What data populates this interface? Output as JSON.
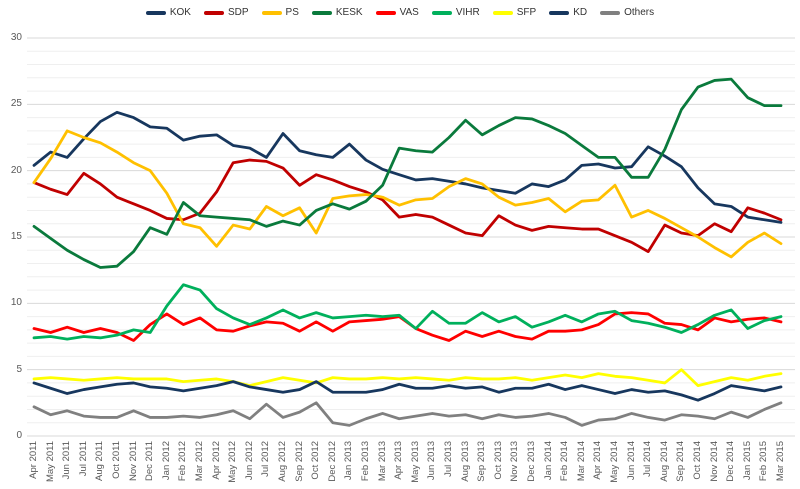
{
  "chart_data": {
    "type": "line",
    "title": "",
    "xlabel": "",
    "ylabel": "",
    "ylim": [
      0,
      30
    ],
    "ytick_interval": 5,
    "minor_grid_interval": 1,
    "grid": true,
    "legend_position": "top",
    "y_ticks": [
      "0",
      "5",
      "10",
      "15",
      "20",
      "25",
      "30"
    ],
    "categories": [
      "Apr 2011",
      "May 2011",
      "Jun 2011",
      "Jul 2011",
      "Aug 2011",
      "Oct 2011",
      "Nov 2011",
      "Dec 2011",
      "Jan 2012",
      "Feb 2012",
      "Mar 2012",
      "Apr 2012",
      "May 2012",
      "Jun 2012",
      "Jul 2012",
      "Aug 2012",
      "Sep 2012",
      "Oct 2012",
      "Dec 2012",
      "Jan 2013",
      "Feb 2013",
      "Mar 2013",
      "Apr 2013",
      "May 2013",
      "Jun 2013",
      "Jul 2013",
      "Aug 2013",
      "Sep 2013",
      "Oct 2013",
      "Nov 2013",
      "Dec 2013",
      "Jan 2014",
      "Feb 2014",
      "Mar 2014",
      "Apr 2014",
      "May 2014",
      "Jun 2014",
      "Jul 2014",
      "Aug 2014",
      "Sep 2014",
      "Oct 2014",
      "Nov 2014",
      "Dec 2014",
      "Jan 2015",
      "Feb 2015",
      "Mar 2015"
    ],
    "series": [
      {
        "name": "KOK",
        "color": "#17375E",
        "values": [
          20.4,
          21.4,
          21.0,
          22.4,
          23.7,
          24.4,
          24.0,
          23.3,
          23.2,
          22.3,
          22.6,
          22.7,
          21.9,
          21.7,
          21.0,
          22.8,
          21.5,
          21.2,
          21.0,
          22.0,
          20.8,
          20.1,
          19.7,
          19.3,
          19.4,
          19.2,
          19.0,
          18.7,
          18.5,
          18.3,
          19.0,
          18.8,
          19.3,
          20.4,
          20.5,
          20.2,
          20.3,
          21.8,
          21.1,
          20.3,
          18.7,
          17.5,
          17.3,
          16.5,
          16.3,
          16.1
        ]
      },
      {
        "name": "SDP",
        "color": "#C00000",
        "values": [
          19.1,
          18.6,
          18.2,
          19.8,
          19.0,
          18.0,
          17.5,
          17.0,
          16.4,
          16.3,
          16.8,
          18.4,
          20.6,
          20.8,
          20.7,
          20.2,
          18.9,
          19.7,
          19.3,
          18.8,
          18.4,
          17.8,
          16.5,
          16.7,
          16.5,
          15.9,
          15.3,
          15.1,
          16.6,
          15.9,
          15.5,
          15.8,
          15.7,
          15.6,
          15.6,
          15.1,
          14.6,
          13.9,
          15.9,
          15.3,
          15.1,
          16.0,
          15.4,
          17.2,
          16.8,
          16.3
        ]
      },
      {
        "name": "PS",
        "color": "#FFC000",
        "values": [
          19.1,
          20.9,
          23.0,
          22.5,
          22.1,
          21.4,
          20.6,
          20.0,
          18.3,
          16.0,
          15.7,
          14.3,
          15.9,
          15.6,
          17.3,
          16.6,
          17.2,
          15.3,
          17.9,
          18.1,
          18.2,
          18.0,
          17.4,
          17.8,
          17.9,
          18.8,
          19.4,
          19.0,
          18.0,
          17.4,
          17.6,
          17.9,
          16.9,
          17.7,
          17.8,
          18.9,
          16.5,
          17.0,
          16.4,
          15.7,
          15.0,
          14.2,
          13.5,
          14.6,
          15.3,
          14.5
        ]
      },
      {
        "name": "KESK",
        "color": "#0A7A3C",
        "values": [
          15.8,
          14.9,
          14.0,
          13.3,
          12.7,
          12.8,
          13.9,
          15.7,
          15.2,
          17.6,
          16.6,
          16.5,
          16.4,
          16.3,
          15.8,
          16.2,
          15.9,
          17.0,
          17.5,
          17.1,
          17.7,
          18.9,
          21.7,
          21.5,
          21.4,
          22.5,
          23.8,
          22.7,
          23.4,
          24.0,
          23.9,
          23.4,
          22.8,
          21.9,
          21.0,
          21.0,
          19.5,
          19.5,
          21.6,
          24.6,
          26.3,
          26.8,
          26.9,
          25.5,
          24.9,
          24.9
        ]
      },
      {
        "name": "VAS",
        "color": "#FF0000",
        "values": [
          8.1,
          7.8,
          8.2,
          7.8,
          8.1,
          7.8,
          7.2,
          8.4,
          9.2,
          8.4,
          8.9,
          8.0,
          7.9,
          8.3,
          8.6,
          8.5,
          7.9,
          8.6,
          7.9,
          8.6,
          8.7,
          8.8,
          9.0,
          8.1,
          7.6,
          7.2,
          7.9,
          7.5,
          7.9,
          7.5,
          7.3,
          7.9,
          7.9,
          8.0,
          8.4,
          9.2,
          9.3,
          9.2,
          8.5,
          8.4,
          8.0,
          8.9,
          8.6,
          8.8,
          8.9,
          8.6
        ]
      },
      {
        "name": "VIHR",
        "color": "#00B05C",
        "values": [
          7.4,
          7.5,
          7.3,
          7.5,
          7.4,
          7.6,
          8.0,
          7.8,
          9.8,
          11.4,
          11.0,
          9.6,
          8.9,
          8.4,
          8.9,
          9.5,
          8.9,
          9.3,
          8.9,
          9.0,
          9.1,
          9.0,
          9.1,
          8.1,
          9.4,
          8.5,
          8.5,
          9.3,
          8.6,
          9.0,
          8.2,
          8.6,
          9.1,
          8.6,
          9.2,
          9.4,
          8.7,
          8.5,
          8.2,
          7.8,
          8.4,
          9.1,
          9.5,
          8.1,
          8.7,
          9.0
        ]
      },
      {
        "name": "SFP",
        "color": "#FFFF00",
        "values": [
          4.3,
          4.4,
          4.3,
          4.2,
          4.3,
          4.4,
          4.3,
          4.3,
          4.3,
          4.1,
          4.2,
          4.3,
          4.1,
          3.8,
          4.1,
          4.4,
          4.2,
          4.0,
          4.4,
          4.3,
          4.3,
          4.4,
          4.3,
          4.4,
          4.3,
          4.2,
          4.4,
          4.3,
          4.3,
          4.4,
          4.2,
          4.4,
          4.6,
          4.4,
          4.7,
          4.5,
          4.4,
          4.2,
          4.0,
          5.0,
          3.8,
          4.1,
          4.4,
          4.2,
          4.5,
          4.7
        ]
      },
      {
        "name": "KD",
        "color": "#17375E",
        "values": [
          4.0,
          3.6,
          3.2,
          3.5,
          3.7,
          3.9,
          4.0,
          3.7,
          3.6,
          3.4,
          3.6,
          3.8,
          4.1,
          3.7,
          3.5,
          3.3,
          3.5,
          4.1,
          3.3,
          3.3,
          3.3,
          3.5,
          3.9,
          3.6,
          3.6,
          3.8,
          3.6,
          3.7,
          3.3,
          3.6,
          3.6,
          3.9,
          3.5,
          3.8,
          3.5,
          3.2,
          3.5,
          3.3,
          3.4,
          3.1,
          2.7,
          3.2,
          3.8,
          3.6,
          3.4,
          3.7
        ]
      },
      {
        "name": "Others",
        "color": "#808080",
        "values": [
          2.2,
          1.6,
          1.9,
          1.5,
          1.4,
          1.4,
          1.9,
          1.4,
          1.4,
          1.5,
          1.4,
          1.6,
          1.9,
          1.3,
          2.4,
          1.4,
          1.8,
          2.5,
          1.0,
          0.8,
          1.3,
          1.7,
          1.3,
          1.5,
          1.7,
          1.5,
          1.6,
          1.3,
          1.6,
          1.4,
          1.5,
          1.7,
          1.4,
          0.8,
          1.2,
          1.3,
          1.7,
          1.4,
          1.2,
          1.6,
          1.5,
          1.3,
          1.8,
          1.4,
          2.0,
          2.5
        ]
      }
    ],
    "gridline_color_minor": "#EFEFEF",
    "gridline_color_major": "#D9D9D9",
    "tick_label_color": "#595959"
  }
}
